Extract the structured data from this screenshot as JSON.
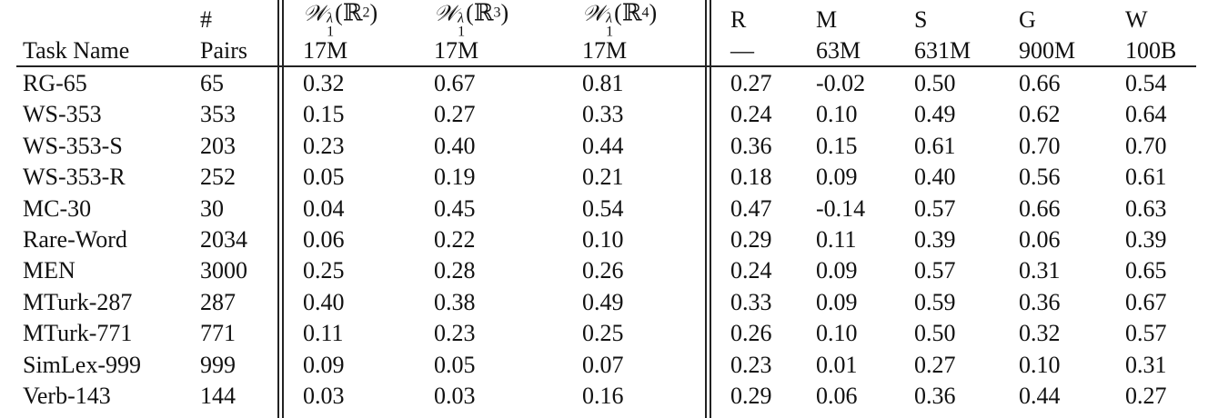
{
  "table": {
    "header_top": [
      "",
      "#",
      {
        "base": "𝒲",
        "sub": "1",
        "sup": "λ",
        "open": "(",
        "field": "ℝ",
        "power": "2",
        "close": ")"
      },
      {
        "base": "𝒲",
        "sub": "1",
        "sup": "λ",
        "open": "(",
        "field": "ℝ",
        "power": "3",
        "close": ")"
      },
      {
        "base": "𝒲",
        "sub": "1",
        "sup": "λ",
        "open": "(",
        "field": "ℝ",
        "power": "4",
        "close": ")"
      },
      "R",
      "M",
      "S",
      "G",
      "W"
    ],
    "header_bottom": [
      "Task Name",
      "Pairs",
      "17M",
      "17M",
      "17M",
      "—",
      "63M",
      "631M",
      "900M",
      "100B"
    ],
    "rows": [
      [
        "RG-65",
        "65",
        "0.32",
        "0.67",
        "0.81",
        "0.27",
        "-0.02",
        "0.50",
        "0.66",
        "0.54"
      ],
      [
        "WS-353",
        "353",
        "0.15",
        "0.27",
        "0.33",
        "0.24",
        "0.10",
        "0.49",
        "0.62",
        "0.64"
      ],
      [
        "WS-353-S",
        "203",
        "0.23",
        "0.40",
        "0.44",
        "0.36",
        "0.15",
        "0.61",
        "0.70",
        "0.70"
      ],
      [
        "WS-353-R",
        "252",
        "0.05",
        "0.19",
        "0.21",
        "0.18",
        "0.09",
        "0.40",
        "0.56",
        "0.61"
      ],
      [
        "MC-30",
        "30",
        "0.04",
        "0.45",
        "0.54",
        "0.47",
        "-0.14",
        "0.57",
        "0.66",
        "0.63"
      ],
      [
        "Rare-Word",
        "2034",
        "0.06",
        "0.22",
        "0.10",
        "0.29",
        "0.11",
        "0.39",
        "0.06",
        "0.39"
      ],
      [
        "MEN",
        "3000",
        "0.25",
        "0.28",
        "0.26",
        "0.24",
        "0.09",
        "0.57",
        "0.31",
        "0.65"
      ],
      [
        "MTurk-287",
        "287",
        "0.40",
        "0.38",
        "0.49",
        "0.33",
        "0.09",
        "0.59",
        "0.36",
        "0.67"
      ],
      [
        "MTurk-771",
        "771",
        "0.11",
        "0.23",
        "0.25",
        "0.26",
        "0.10",
        "0.50",
        "0.32",
        "0.57"
      ],
      [
        "SimLex-999",
        "999",
        "0.09",
        "0.05",
        "0.07",
        "0.23",
        "0.01",
        "0.27",
        "0.10",
        "0.31"
      ],
      [
        "Verb-143",
        "144",
        "0.03",
        "0.03",
        "0.16",
        "0.29",
        "0.06",
        "0.36",
        "0.44",
        "0.27"
      ]
    ]
  }
}
